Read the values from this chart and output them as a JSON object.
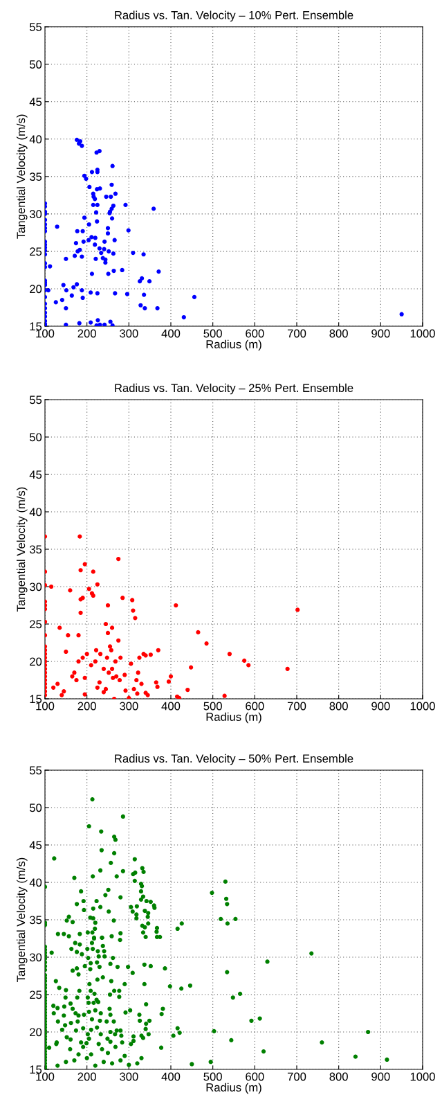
{
  "chart_data": [
    {
      "type": "scatter",
      "title": "Radius vs. Tan. Velocity – 10% Pert. Ensemble",
      "xlabel": "Radius (m)",
      "ylabel": "Tangential Velocity (m/s)",
      "xlim": [
        100,
        1000
      ],
      "ylim": [
        15,
        55
      ],
      "xticks": [
        100,
        200,
        300,
        400,
        500,
        600,
        700,
        800,
        900,
        1000
      ],
      "yticks": [
        15,
        20,
        25,
        30,
        35,
        40,
        45,
        50,
        55
      ],
      "grid": true,
      "marker": "circle",
      "series": [
        {
          "color": "#0000ff",
          "x": [
            176,
            184,
            181,
            188,
            223,
            230,
            261,
            194,
            198,
            212,
            225,
            225,
            206,
            224,
            231,
            259,
            215,
            216,
            219,
            246,
            257,
            268,
            215,
            225,
            263,
            259,
            255,
            254,
            292,
            359,
            222,
            260,
            194,
            224,
            205,
            129,
            250,
            177,
            190,
            250,
            299,
            211,
            220,
            204,
            192,
            242,
            266,
            174,
            219,
            230,
            241,
            252,
            234,
            263,
            310,
            335,
            178,
            183,
            171,
            188,
            150,
            221,
            238,
            244,
            244,
            112,
            212,
            251,
            264,
            284,
            371,
            326,
            331,
            349,
            144,
            176,
            168,
            151,
            188,
            108,
            209,
            225,
            267,
            296,
            336,
            164,
            190,
            456,
            126,
            141,
            150,
            328,
            338,
            368,
            431,
            150,
            182,
            209,
            226,
            231,
            223,
            242,
            256,
            261,
            950,
            100,
            100,
            100,
            100,
            100,
            100,
            100,
            100,
            100,
            100,
            100,
            100,
            100,
            100,
            100,
            100,
            100,
            100,
            100,
            100,
            100,
            100,
            100,
            100,
            100,
            100,
            100
          ],
          "values": [
            39.9,
            39.7,
            39.4,
            39.1,
            38.2,
            38.4,
            36.4,
            35.1,
            34.7,
            35.6,
            35.6,
            35.9,
            33.6,
            33.3,
            33.4,
            33.9,
            32.7,
            32.3,
            32.0,
            32.3,
            32.3,
            32.7,
            31.2,
            31.2,
            31.1,
            30.7,
            30.3,
            30.1,
            31.2,
            30.7,
            30.2,
            29.4,
            29.5,
            29.0,
            28.6,
            28.3,
            28.1,
            27.7,
            27.7,
            27.4,
            27.8,
            26.9,
            26.8,
            26.5,
            26.3,
            26.3,
            26.5,
            26.1,
            25.9,
            25.4,
            25.3,
            25.0,
            24.8,
            24.7,
            24.8,
            24.6,
            25.0,
            25.2,
            24.4,
            24.3,
            24.0,
            24.0,
            24.1,
            23.9,
            23.5,
            23.0,
            22.0,
            22.0,
            22.4,
            22.5,
            22.3,
            21.0,
            21.4,
            21.0,
            20.5,
            20.6,
            20.2,
            19.8,
            19.8,
            19.8,
            19.5,
            19.4,
            19.4,
            19.3,
            19.2,
            19.1,
            18.8,
            18.9,
            18.2,
            18.5,
            17.4,
            17.8,
            17.4,
            17.4,
            16.2,
            15.2,
            15.4,
            15.5,
            15.8,
            15.2,
            15.1,
            15.2,
            15.6,
            15.1,
            16.6,
            31.4,
            31.0,
            30.3,
            30.0,
            29.2,
            28.6,
            28.1,
            27.7,
            26.3,
            25.9,
            25.5,
            25.1,
            24.6,
            23.4,
            22.9,
            21.1,
            20.8,
            20.5,
            19.8,
            18.9,
            18.0,
            17.4,
            16.8,
            16.3,
            15.7,
            15.3,
            15.1
          ]
        }
      ]
    },
    {
      "type": "scatter",
      "title": "Radius vs. Tan. Velocity – 25% Pert. Ensemble",
      "xlabel": "Radius (m)",
      "ylabel": "Tangential Velocity (m/s)",
      "xlim": [
        100,
        1000
      ],
      "ylim": [
        15,
        55
      ],
      "xticks": [
        100,
        200,
        300,
        400,
        500,
        600,
        700,
        800,
        900,
        1000
      ],
      "yticks": [
        15,
        20,
        25,
        30,
        35,
        40,
        45,
        50,
        55
      ],
      "grid": true,
      "marker": "circle",
      "series": [
        {
          "color": "#ff0000",
          "x": [
            100,
            100,
            100,
            100,
            100,
            100,
            100,
            100,
            100,
            100,
            100,
            100,
            100,
            100,
            100,
            100,
            100,
            100,
            100,
            100,
            100,
            100,
            115,
            120,
            130,
            135,
            140,
            145,
            150,
            155,
            160,
            165,
            170,
            175,
            180,
            180,
            185,
            185,
            185,
            183,
            190,
            195,
            195,
            190,
            200,
            205,
            210,
            212,
            215,
            215,
            220,
            222,
            225,
            225,
            230,
            232,
            240,
            245,
            245,
            248,
            250,
            250,
            252,
            255,
            258,
            260,
            260,
            262,
            265,
            268,
            270,
            275,
            275,
            278,
            280,
            285,
            290,
            292,
            300,
            305,
            308,
            310,
            312,
            315,
            318,
            320,
            322,
            325,
            330,
            335,
            340,
            345,
            352,
            365,
            368,
            370,
            395,
            400,
            412,
            415,
            420,
            440,
            448,
            465,
            485,
            540,
            575,
            585,
            528,
            678,
            702,
            195,
            240,
            340
          ],
          "values": [
            36.7,
            32,
            30.2,
            28,
            27.5,
            27,
            25.3,
            22,
            21.5,
            21,
            20.5,
            20,
            19.5,
            19,
            18.5,
            18,
            17.5,
            17,
            16.5,
            16,
            15.5,
            23.5,
            30,
            16.5,
            17,
            24.5,
            15.5,
            16,
            21.3,
            23.5,
            29.5,
            18,
            18.5,
            17.5,
            20,
            23.5,
            26.5,
            28.3,
            32.2,
            36.7,
            28.5,
            33,
            17.8,
            20.5,
            21,
            29.7,
            19.5,
            29.1,
            28.8,
            32,
            20,
            21.5,
            30.3,
            16.5,
            17.2,
            21,
            19,
            25,
            16.3,
            20.5,
            27.5,
            23.8,
            18.5,
            22,
            21.5,
            19,
            24.5,
            17.8,
            15,
            20,
            18,
            33.7,
            22.8,
            17.5,
            20.5,
            28.5,
            18.2,
            16.1,
            15.1,
            19.7,
            28.2,
            26.8,
            16.3,
            25.8,
            17.5,
            15.7,
            18.5,
            20.5,
            17,
            21,
            20.8,
            15.5,
            20.9,
            17.2,
            16.6,
            21.5,
            17.3,
            18,
            27.5,
            15.3,
            15.1,
            16.2,
            19.2,
            23.9,
            22.4,
            21,
            20.1,
            19.5,
            15.4,
            19,
            26.9,
            15.6,
            15.9,
            15.8
          ]
        }
      ]
    },
    {
      "type": "scatter",
      "title": "Radius vs. Tan. Velocity – 50% Pert. Ensemble",
      "xlabel": "Radius (m)",
      "ylabel": "Tangential Velocity (m/s)",
      "xlim": [
        100,
        1000
      ],
      "ylim": [
        15,
        55
      ],
      "xticks": [
        100,
        200,
        300,
        400,
        500,
        600,
        700,
        800,
        900,
        1000
      ],
      "yticks": [
        15,
        20,
        25,
        30,
        35,
        40,
        45,
        50,
        55
      ],
      "grid": true,
      "marker": "circle",
      "series": [
        {
          "color": "#008000",
          "x": [
            213,
            205,
            286,
            234,
            265,
            268,
            235,
            265,
            122,
            314,
            257,
            232,
            286,
            332,
            335,
            214,
            271,
            170,
            310,
            315,
            314,
            100,
            530,
            186,
            251,
            244,
            280,
            329,
            331,
            329,
            329,
            334,
            342,
            352,
            360,
            361,
            498,
            532,
            534,
            192,
            223,
            176,
            193,
            215,
            232,
            252,
            305,
            319,
            309,
            318,
            318,
            338,
            346,
            345,
            152,
            157,
            166,
            208,
            215,
            220,
            219,
            202,
            213,
            236,
            259,
            280,
            279,
            264,
            519,
            535,
            554,
            416,
            426,
            131,
            145,
            157,
            183,
            217,
            332,
            338,
            334,
            340,
            346,
            367,
            366,
            367,
            374,
            172,
            183,
            163,
            176,
            188,
            201,
            212,
            217,
            236,
            214,
            226,
            241,
            238,
            228,
            242,
            262,
            203,
            209,
            224,
            256,
            273,
            195,
            176,
            166,
            180,
            208,
            230,
            298,
            309,
            337,
            352,
            386,
            534,
            630,
            116,
            126,
            134,
            150,
            149,
            177,
            182,
            206,
            209,
            225,
            238,
            258,
            265,
            277,
            277,
            255,
            290,
            337,
            398,
            425,
            446,
            548,
            565,
            202,
            218,
            223,
            204,
            216,
            227,
            341,
            161,
            120,
            146,
            166,
            254,
            130,
            121,
            145,
            173,
            180,
            193,
            205,
            220,
            233,
            256,
            292,
            303,
            325,
            381,
            378,
            131,
            148,
            162,
            178,
            212,
            231,
            247,
            264,
            326,
            341,
            349,
            340,
            592,
            612,
            141,
            174,
            191,
            210,
            224,
            256,
            271,
            280,
            416,
            421,
            503,
            347,
            152,
            202,
            205,
            233,
            249,
            267,
            282,
            311,
            330,
            334,
            406,
            544,
            311,
            128,
            161,
            186,
            199,
            228,
            256,
            284,
            305,
            127,
            110,
            160,
            191,
            236,
            268,
            377,
            621,
            150,
            170,
            200,
            220,
            240,
            260,
            280,
            300,
            320,
            130,
            210,
            250,
            290,
            330,
            180,
            450,
            495,
            870,
            915,
            840,
            760,
            735,
            100,
            100,
            100,
            100,
            100,
            100,
            100,
            100,
            100,
            100,
            100,
            100,
            100,
            100,
            100,
            100,
            100,
            100,
            100,
            100,
            100,
            100,
            100,
            100,
            100,
            100,
            100,
            100,
            100,
            100,
            100,
            100,
            100,
            100,
            100,
            100,
            100,
            100,
            100,
            100,
            100,
            100
          ],
          "values": [
            51.1,
            47.5,
            48.8,
            46.8,
            46.1,
            45.7,
            44.3,
            43.9,
            43.2,
            43.1,
            42.6,
            41.6,
            41.5,
            41.9,
            41.4,
            40.8,
            40.8,
            40.6,
            41.1,
            41.3,
            40.2,
            39.4,
            40.1,
            38.8,
            39.0,
            38.3,
            38.0,
            39.8,
            39.5,
            38.8,
            37.7,
            38.1,
            37.5,
            37.4,
            36.9,
            36.6,
            38.6,
            37.8,
            37.1,
            37.5,
            37.5,
            37.1,
            36.3,
            36.5,
            36.7,
            36.1,
            36.7,
            36.8,
            36.1,
            35.7,
            35.2,
            36.2,
            35.9,
            35.4,
            34.9,
            35.4,
            34.7,
            35.3,
            35.2,
            34.6,
            33.8,
            33.3,
            33.3,
            32.6,
            32.8,
            33.2,
            32.3,
            34.9,
            35.1,
            34.5,
            35.1,
            33.8,
            34.5,
            33.1,
            33.1,
            32.8,
            33.1,
            32.6,
            34.2,
            34.0,
            33.3,
            32.7,
            34.5,
            33.9,
            33.4,
            32.7,
            32.7,
            31.9,
            31.7,
            31.1,
            30.7,
            30.4,
            31.1,
            31.9,
            32.5,
            32.6,
            31.1,
            30.8,
            30.8,
            31.5,
            30.1,
            30.1,
            29.9,
            29.9,
            29.2,
            29.3,
            29.1,
            28.7,
            28.8,
            28.5,
            28.2,
            27.7,
            28.4,
            28.7,
            28.7,
            27.9,
            29.0,
            28.8,
            28.5,
            28.0,
            29.4,
            30.6,
            26.8,
            25.9,
            25.6,
            24.6,
            24.6,
            25.5,
            26.4,
            25.5,
            27.0,
            27.3,
            26.8,
            25.5,
            25.5,
            24.7,
            25.0,
            26.4,
            26.4,
            26.1,
            25.8,
            26.2,
            24.6,
            25.1,
            24.6,
            25.1,
            24.3,
            23.9,
            23.9,
            24.0,
            23.7,
            23.8,
            23.5,
            23.4,
            23.1,
            23.1,
            23.2,
            22.5,
            22.2,
            22.5,
            22.2,
            22.3,
            22.7,
            22.9,
            22.5,
            22.3,
            22.6,
            22.9,
            22.3,
            23.1,
            22.4,
            21.4,
            20.9,
            21.2,
            21.4,
            21.7,
            21.5,
            21.4,
            21.4,
            21.5,
            21.1,
            21.5,
            20.4,
            21.5,
            21.8,
            20.3,
            20.2,
            20.5,
            20.3,
            20.6,
            20.0,
            20.2,
            20.2,
            20.5,
            19.9,
            20.1,
            19.7,
            19.3,
            19.7,
            19.1,
            19.7,
            19.1,
            19.7,
            19.5,
            19.4,
            19.5,
            19.2,
            19.5,
            18.9,
            18.8,
            18.6,
            19.0,
            18.6,
            18.5,
            18.4,
            18.7,
            18.6,
            18.4,
            18.4,
            17.9,
            17.7,
            18.0,
            17.7,
            18.0,
            17.9,
            17.4,
            16.0,
            16.2,
            16.5,
            15.5,
            16.0,
            15.8,
            16.2,
            15.6,
            15.8,
            15.5,
            17.0,
            17.2,
            16.8,
            16.5,
            17.0,
            15.7,
            16.0,
            20.0,
            16.3,
            16.7,
            18.6,
            30.5,
            34.6,
            34.3,
            31.4,
            31.0,
            30.6,
            30.2,
            29.8,
            29.3,
            28.8,
            28.3,
            27.6,
            27.2,
            26.8,
            26.3,
            25.9,
            25.4,
            25.0,
            24.6,
            24.2,
            23.8,
            23.4,
            23.0,
            22.6,
            22.2,
            21.8,
            21.4,
            21.0,
            20.6,
            20.2,
            19.8,
            19.4,
            19.0,
            18.6,
            18.2,
            17.8,
            17.4,
            17.0,
            16.6,
            16.2,
            15.8,
            15.4,
            15.1
          ]
        }
      ]
    }
  ]
}
